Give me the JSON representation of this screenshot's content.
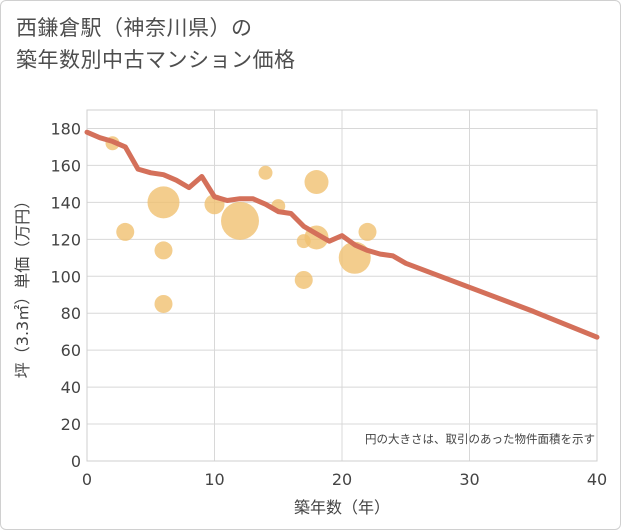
{
  "chart_data": {
    "type": "scatter",
    "title_line1": "西鎌倉駅（神奈川県）の",
    "title_line2": "築年数別中古マンション価格",
    "xlabel": "築年数（年）",
    "ylabel": "坪（3.3㎡）単価（万円）",
    "xlim": [
      0,
      40
    ],
    "ylim": [
      0,
      190
    ],
    "xticks": [
      0,
      10,
      20,
      30,
      40
    ],
    "yticks": [
      0,
      20,
      40,
      60,
      80,
      100,
      120,
      140,
      160,
      180
    ],
    "note": "円の大きさは、取引のあった物件面積を示す",
    "colors": {
      "bubble": "#f0c070",
      "line": "#d4705a",
      "grid": "#d8d8d8"
    },
    "bubbles": [
      {
        "x": 2,
        "y": 172,
        "size": 0.15
      },
      {
        "x": 3,
        "y": 124,
        "size": 0.25
      },
      {
        "x": 6,
        "y": 140,
        "size": 0.6
      },
      {
        "x": 6,
        "y": 114,
        "size": 0.25
      },
      {
        "x": 6,
        "y": 85,
        "size": 0.25
      },
      {
        "x": 10,
        "y": 139,
        "size": 0.3
      },
      {
        "x": 12,
        "y": 130,
        "size": 0.75
      },
      {
        "x": 14,
        "y": 156,
        "size": 0.15
      },
      {
        "x": 15,
        "y": 138,
        "size": 0.15
      },
      {
        "x": 17,
        "y": 119,
        "size": 0.15
      },
      {
        "x": 17,
        "y": 98,
        "size": 0.25
      },
      {
        "x": 18,
        "y": 151,
        "size": 0.4
      },
      {
        "x": 18,
        "y": 121,
        "size": 0.4
      },
      {
        "x": 21,
        "y": 110,
        "size": 0.6
      },
      {
        "x": 22,
        "y": 124,
        "size": 0.25
      }
    ],
    "trend": {
      "x": [
        0,
        1,
        2,
        3,
        4,
        5,
        6,
        7,
        8,
        9,
        10,
        11,
        12,
        13,
        14,
        15,
        16,
        17,
        18,
        19,
        20,
        21,
        22,
        23,
        24,
        25,
        30,
        35,
        40
      ],
      "y": [
        178,
        175,
        173,
        170,
        158,
        156,
        155,
        152,
        148,
        154,
        143,
        141,
        142,
        142,
        139,
        135,
        134,
        127,
        123,
        119,
        122,
        117,
        114,
        112,
        111,
        107,
        94,
        81,
        67
      ]
    }
  }
}
